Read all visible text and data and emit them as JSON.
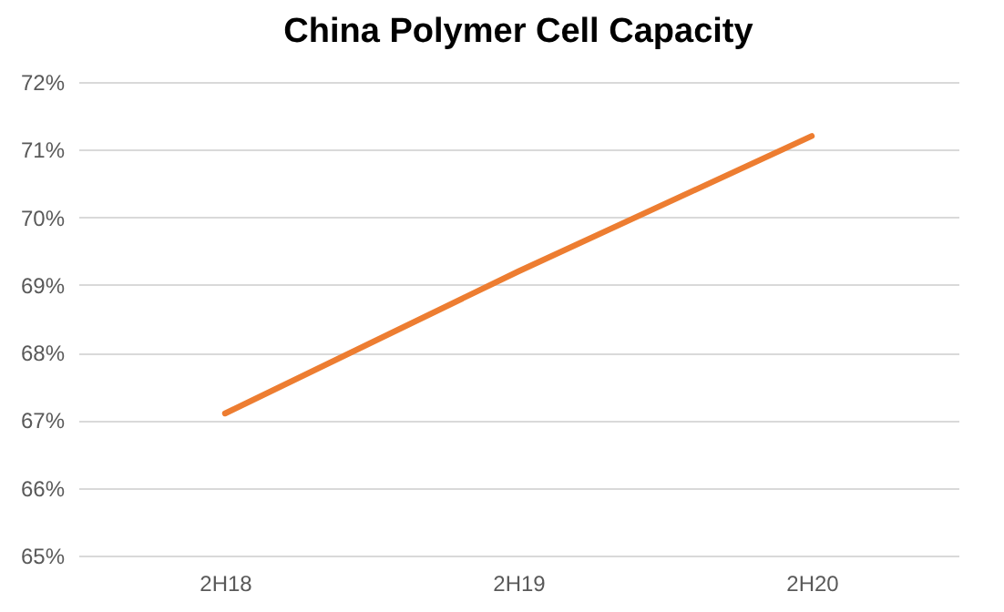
{
  "chart_data": {
    "type": "line",
    "title": "China Polymer Cell Capacity",
    "categories": [
      "2H18",
      "2H19",
      "2H20"
    ],
    "series": [
      {
        "color": "#ed7d31",
        "values": [
          67.1,
          69.2,
          71.2
        ]
      }
    ],
    "ylim": [
      65,
      72
    ],
    "yticks": [
      {
        "value": 65,
        "label": "65%"
      },
      {
        "value": 66,
        "label": "66%"
      },
      {
        "value": 67,
        "label": "67%"
      },
      {
        "value": 68,
        "label": "68%"
      },
      {
        "value": 69,
        "label": "69%"
      },
      {
        "value": 70,
        "label": "70%"
      },
      {
        "value": 71,
        "label": "71%"
      },
      {
        "value": 72,
        "label": "72%"
      }
    ],
    "grid": "y",
    "legend": false,
    "marker": "none",
    "line_style": "solid"
  }
}
